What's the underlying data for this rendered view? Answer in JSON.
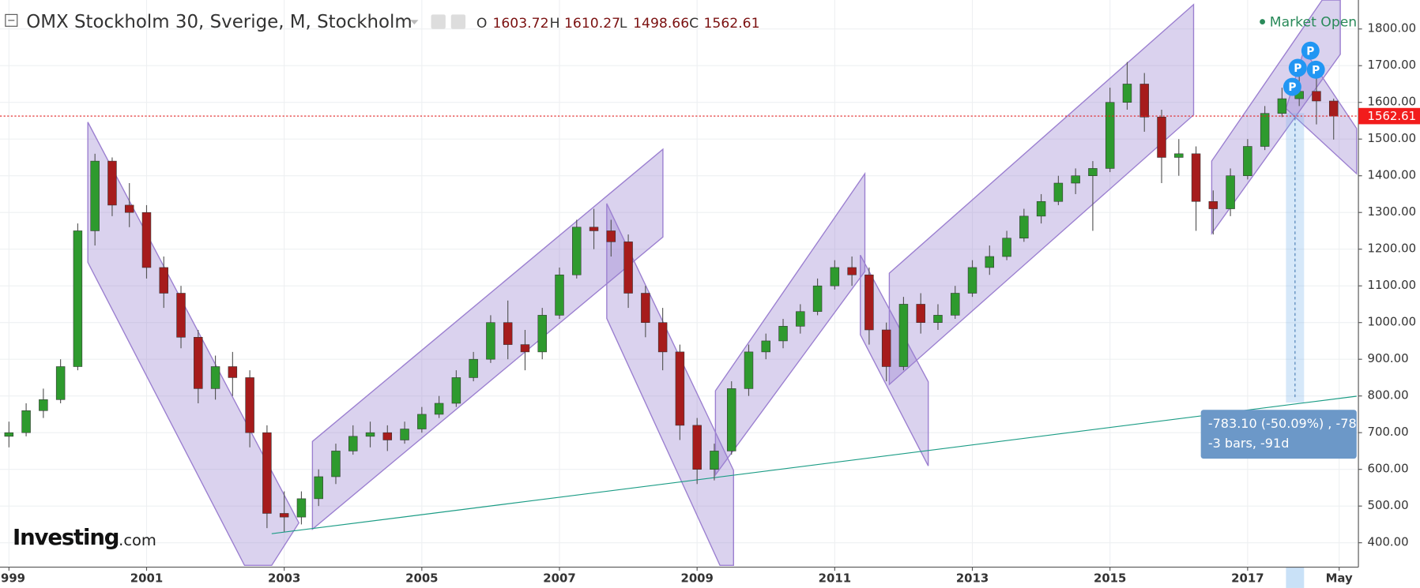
{
  "chart_data": {
    "type": "candlestick",
    "title": "OMX Stockholm 30, Sverige, M, Stockholm",
    "ohlc_labels": [
      "O",
      "H",
      "L",
      "C"
    ],
    "status": "Market Open",
    "logo": [
      "Investing",
      ".com"
    ],
    "annotations": {
      "measure": [
        "-783.10 (-50.09%) , -78",
        "-3 bars, -91d"
      ],
      "markers": [
        "P",
        "P",
        "P",
        "P"
      ]
    },
    "up_color": "#2e9a2e",
    "down_color": "#a61c1c",
    "grid": true,
    "xlim": [
      1998.87,
      2018.61
    ],
    "ylim": [
      338.4,
      1878.9
    ],
    "xticks": [
      {
        "value": 1999,
        "label": "1999"
      },
      2001,
      2003,
      2005,
      2007,
      2009,
      2011,
      2013,
      2015,
      2017,
      {
        "value": 2018.33,
        "label": "May"
      }
    ],
    "yticks": [
      {
        "value": 400,
        "label": "400.00"
      },
      {
        "value": 500,
        "label": "500.00"
      },
      {
        "value": 600,
        "label": "600.00"
      },
      {
        "value": 700,
        "label": "700.00"
      },
      {
        "value": 800,
        "label": "800.00"
      },
      {
        "value": 900,
        "label": "900.00"
      },
      {
        "value": 1000,
        "label": "1000.00"
      },
      {
        "value": 1100,
        "label": "1100.00"
      },
      {
        "value": 1200,
        "label": "1200.00"
      },
      {
        "value": 1300,
        "label": "1300.00"
      },
      {
        "value": 1400,
        "label": "1400.00"
      },
      {
        "value": 1500,
        "label": "1500.00"
      },
      {
        "value": 1600,
        "label": "1600.00"
      },
      {
        "value": 1700,
        "label": "1700.00"
      },
      {
        "value": 1800,
        "label": "1800.00"
      }
    ],
    "x": [
      1999.0,
      1999.25,
      1999.5,
      1999.75,
      2000.0,
      2000.25,
      2000.5,
      2000.75,
      2001.0,
      2001.25,
      2001.5,
      2001.75,
      2002.0,
      2002.25,
      2002.5,
      2002.75,
      2003.0,
      2003.25,
      2003.5,
      2003.75,
      2004.0,
      2004.25,
      2004.5,
      2004.75,
      2005.0,
      2005.25,
      2005.5,
      2005.75,
      2006.0,
      2006.25,
      2006.5,
      2006.75,
      2007.0,
      2007.25,
      2007.5,
      2007.75,
      2008.0,
      2008.25,
      2008.5,
      2008.75,
      2009.0,
      2009.25,
      2009.5,
      2009.75,
      2010.0,
      2010.25,
      2010.5,
      2010.75,
      2011.0,
      2011.25,
      2011.5,
      2011.75,
      2012.0,
      2012.25,
      2012.5,
      2012.75,
      2013.0,
      2013.25,
      2013.5,
      2013.75,
      2014.0,
      2014.25,
      2014.5,
      2014.75,
      2015.0,
      2015.25,
      2015.5,
      2015.75,
      2016.0,
      2016.25,
      2016.5,
      2016.75,
      2017.0,
      2017.25,
      2017.5,
      2017.75,
      2018.0,
      2018.25
    ],
    "open": [
      690,
      700,
      760,
      790,
      880,
      1250,
      1440,
      1320,
      1300,
      1150,
      1080,
      960,
      820,
      880,
      850,
      700,
      480,
      470,
      520,
      580,
      650,
      690,
      700,
      680,
      710,
      750,
      780,
      850,
      900,
      1000,
      940,
      920,
      1020,
      1130,
      1260,
      1250,
      1220,
      1080,
      1000,
      920,
      720,
      600,
      650,
      820,
      920,
      950,
      990,
      1030,
      1100,
      1150,
      1130,
      980,
      880,
      1050,
      1000,
      1020,
      1080,
      1150,
      1180,
      1230,
      1290,
      1330,
      1380,
      1400,
      1420,
      1600,
      1650,
      1560,
      1450,
      1460,
      1330,
      1310,
      1400,
      1480,
      1570,
      1610,
      1630,
      1603.72
    ],
    "high": [
      730,
      780,
      820,
      900,
      1270,
      1460,
      1450,
      1380,
      1320,
      1180,
      1100,
      980,
      910,
      920,
      870,
      720,
      540,
      540,
      600,
      670,
      720,
      730,
      720,
      730,
      770,
      800,
      870,
      920,
      1020,
      1060,
      980,
      1040,
      1150,
      1280,
      1310,
      1280,
      1240,
      1100,
      1040,
      940,
      740,
      670,
      840,
      940,
      970,
      1010,
      1050,
      1120,
      1170,
      1180,
      1150,
      1000,
      1070,
      1080,
      1050,
      1100,
      1170,
      1210,
      1250,
      1310,
      1350,
      1400,
      1420,
      1440,
      1640,
      1710,
      1680,
      1580,
      1500,
      1480,
      1360,
      1420,
      1500,
      1590,
      1640,
      1680,
      1690,
      1610.27
    ],
    "low": [
      660,
      690,
      740,
      780,
      870,
      1210,
      1290,
      1260,
      1120,
      1040,
      930,
      780,
      790,
      800,
      660,
      440,
      430,
      450,
      500,
      560,
      640,
      660,
      650,
      670,
      700,
      740,
      770,
      840,
      890,
      900,
      870,
      900,
      1010,
      1120,
      1200,
      1180,
      1040,
      960,
      870,
      680,
      560,
      570,
      640,
      800,
      900,
      930,
      970,
      1020,
      1090,
      1100,
      940,
      840,
      870,
      970,
      980,
      1010,
      1070,
      1130,
      1170,
      1220,
      1270,
      1320,
      1350,
      1250,
      1410,
      1580,
      1520,
      1380,
      1400,
      1250,
      1240,
      1290,
      1390,
      1470,
      1560,
      1590,
      1540,
      1498.66
    ],
    "close": [
      700,
      760,
      790,
      880,
      1250,
      1440,
      1320,
      1300,
      1150,
      1080,
      960,
      820,
      880,
      850,
      700,
      480,
      470,
      520,
      580,
      650,
      690,
      700,
      680,
      710,
      750,
      780,
      850,
      900,
      1000,
      940,
      920,
      1020,
      1130,
      1260,
      1250,
      1220,
      1080,
      1000,
      920,
      720,
      600,
      650,
      820,
      920,
      950,
      990,
      1030,
      1100,
      1150,
      1130,
      980,
      880,
      1050,
      1000,
      1020,
      1080,
      1150,
      1180,
      1230,
      1290,
      1330,
      1380,
      1400,
      1420,
      1600,
      1650,
      1560,
      1450,
      1460,
      1330,
      1310,
      1400,
      1480,
      1570,
      1610,
      1630,
      1603.72,
      1562.61
    ]
  }
}
